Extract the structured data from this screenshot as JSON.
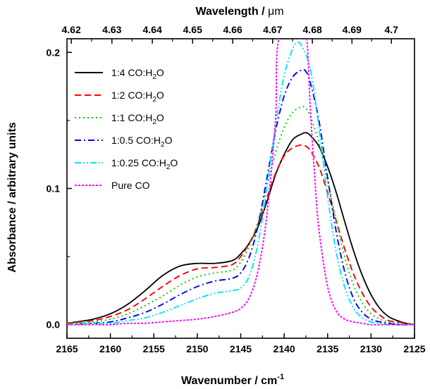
{
  "chart_data": {
    "type": "line",
    "xlabel": "Wavenumber / cm",
    "xlabel_sup": "-1",
    "ylabel": "Absorbance / arbitrary units",
    "top_axis_label_prefix": "Wavelength / ",
    "top_axis_label_unit": "μm",
    "xlim": [
      2165,
      2125
    ],
    "ylim": [
      -0.01,
      0.21
    ],
    "x_ticks": [
      2165,
      2160,
      2155,
      2150,
      2145,
      2140,
      2135,
      2130,
      2125
    ],
    "x_tick_labels": [
      "2165",
      "2160",
      "2155",
      "2150",
      "2145",
      "2140",
      "2135",
      "2130",
      "2125"
    ],
    "y_ticks": [
      0.0,
      0.1,
      0.2
    ],
    "y_tick_labels": [
      "0.0",
      "0.1",
      "0.2"
    ],
    "top_ticks_um": [
      4.62,
      4.63,
      4.64,
      4.65,
      4.66,
      4.67,
      4.68,
      4.69,
      4.7
    ],
    "top_tick_labels": [
      "4.62",
      "4.63",
      "4.64",
      "4.65",
      "4.66",
      "4.67",
      "4.68",
      "4.69",
      "4.7"
    ],
    "grid": false,
    "legend_position": "top-left",
    "series": [
      {
        "name": "1:4 CO:H2O",
        "label_main": "1:4 CO:H",
        "label_sub": "2",
        "label_tail": "O",
        "color": "#000000",
        "dash": "solid",
        "x": [
          2165,
          2162,
          2160,
          2158,
          2156,
          2154,
          2152,
          2150,
          2148,
          2146,
          2145,
          2144,
          2143,
          2142,
          2141,
          2140,
          2139,
          2138,
          2137.5,
          2137,
          2136,
          2135,
          2134,
          2133,
          2132,
          2131,
          2130,
          2129,
          2128,
          2127,
          2126,
          2125
        ],
        "y": [
          0.001,
          0.004,
          0.008,
          0.015,
          0.025,
          0.036,
          0.043,
          0.045,
          0.045,
          0.047,
          0.052,
          0.06,
          0.072,
          0.09,
          0.11,
          0.125,
          0.136,
          0.14,
          0.141,
          0.139,
          0.131,
          0.116,
          0.097,
          0.075,
          0.054,
          0.036,
          0.022,
          0.012,
          0.006,
          0.003,
          0.001,
          0.0
        ]
      },
      {
        "name": "1:2 CO:H2O",
        "label_main": "1:2 CO:H",
        "label_sub": "2",
        "label_tail": "O",
        "color": "#ff0000",
        "dash": "long",
        "x": [
          2165,
          2162,
          2160,
          2158,
          2156,
          2154,
          2152,
          2150,
          2148,
          2146,
          2145,
          2144,
          2143,
          2142,
          2141,
          2140,
          2139,
          2138,
          2137.5,
          2137,
          2136,
          2135,
          2134,
          2133,
          2132,
          2131,
          2130,
          2129,
          2128,
          2127,
          2126,
          2125
        ],
        "y": [
          0.001,
          0.003,
          0.006,
          0.011,
          0.019,
          0.028,
          0.036,
          0.041,
          0.042,
          0.044,
          0.05,
          0.06,
          0.074,
          0.093,
          0.111,
          0.124,
          0.13,
          0.132,
          0.131,
          0.128,
          0.116,
          0.097,
          0.076,
          0.055,
          0.037,
          0.023,
          0.013,
          0.007,
          0.003,
          0.002,
          0.001,
          0.0
        ]
      },
      {
        "name": "1:1 CO:H2O",
        "label_main": "1:1 CO:H",
        "label_sub": "2",
        "label_tail": "O",
        "color": "#00cc00",
        "dash": "dot",
        "x": [
          2165,
          2162,
          2160,
          2158,
          2156,
          2154,
          2152,
          2150,
          2148,
          2146,
          2145,
          2144,
          2143,
          2142,
          2141,
          2140,
          2139,
          2138,
          2137.5,
          2137,
          2136,
          2135,
          2134,
          2133,
          2132,
          2131,
          2130,
          2129,
          2128,
          2127,
          2126,
          2125
        ],
        "y": [
          0.001,
          0.002,
          0.004,
          0.008,
          0.014,
          0.021,
          0.029,
          0.035,
          0.038,
          0.04,
          0.046,
          0.058,
          0.076,
          0.101,
          0.126,
          0.145,
          0.156,
          0.16,
          0.159,
          0.153,
          0.134,
          0.106,
          0.076,
          0.049,
          0.029,
          0.016,
          0.008,
          0.004,
          0.002,
          0.001,
          0.0,
          0.0
        ]
      },
      {
        "name": "1:0.5 CO:H2O",
        "label_main": "1:0.5 CO:H",
        "label_sub": "2",
        "label_tail": "O",
        "color": "#0000ff",
        "dash": "dashdot",
        "x": [
          2165,
          2162,
          2160,
          2158,
          2156,
          2154,
          2152,
          2150,
          2148,
          2146,
          2145,
          2144,
          2143,
          2142,
          2141,
          2140,
          2139,
          2138,
          2137.5,
          2137,
          2136,
          2135,
          2134,
          2133,
          2132,
          2131,
          2130,
          2129,
          2128,
          2127,
          2126,
          2125
        ],
        "y": [
          0.0,
          0.001,
          0.002,
          0.005,
          0.009,
          0.015,
          0.022,
          0.028,
          0.032,
          0.034,
          0.038,
          0.05,
          0.073,
          0.107,
          0.142,
          0.168,
          0.182,
          0.187,
          0.186,
          0.178,
          0.15,
          0.108,
          0.068,
          0.038,
          0.019,
          0.009,
          0.004,
          0.002,
          0.001,
          0.0,
          0.0,
          0.0
        ]
      },
      {
        "name": "1:0.25 CO:H2O",
        "label_main": "1:0.25 CO:H",
        "label_sub": "2",
        "label_tail": "O",
        "color": "#00e5ff",
        "dash": "dashdotdot",
        "x": [
          2165,
          2162,
          2160,
          2158,
          2156,
          2154,
          2152,
          2150,
          2148,
          2146,
          2145,
          2144,
          2143,
          2142,
          2141,
          2140,
          2139,
          2138.5,
          2138,
          2137,
          2136,
          2135,
          2134,
          2133,
          2132,
          2131,
          2130,
          2129,
          2128,
          2127,
          2126,
          2125
        ],
        "y": [
          0.0,
          0.001,
          0.001,
          0.003,
          0.005,
          0.009,
          0.014,
          0.019,
          0.023,
          0.025,
          0.027,
          0.036,
          0.06,
          0.1,
          0.146,
          0.183,
          0.203,
          0.207,
          0.205,
          0.188,
          0.145,
          0.094,
          0.053,
          0.027,
          0.012,
          0.005,
          0.002,
          0.001,
          0.0,
          0.0,
          0.0,
          0.0
        ]
      },
      {
        "name": "Pure CO",
        "label_main": "Pure CO",
        "label_sub": "",
        "label_tail": "",
        "color": "#ff00ff",
        "dash": "shortdot",
        "x": [
          2165,
          2162,
          2160,
          2158,
          2156,
          2154,
          2152,
          2150,
          2148,
          2146,
          2145,
          2144,
          2143,
          2142,
          2141,
          2140.6,
          2138,
          2137.4,
          2137,
          2136.5,
          2136,
          2135,
          2134,
          2133,
          2132,
          2131,
          2130,
          2128,
          2126,
          2125
        ],
        "y": [
          0.0,
          0.0,
          0.0,
          0.001,
          0.001,
          0.002,
          0.003,
          0.004,
          0.006,
          0.009,
          0.012,
          0.02,
          0.04,
          0.08,
          0.15,
          0.21,
          0.21,
          0.21,
          0.16,
          0.11,
          0.07,
          0.028,
          0.01,
          0.004,
          0.002,
          0.001,
          0.0,
          0.0,
          0.0,
          0.0
        ]
      }
    ]
  }
}
